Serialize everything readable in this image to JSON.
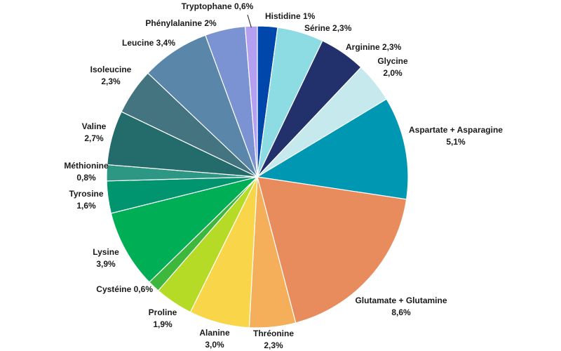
{
  "chart_data": {
    "type": "pie",
    "title": "",
    "slices": [
      {
        "name": "Histidine",
        "value": 1.0,
        "label_lines": [
          "Histidine 1%"
        ],
        "color": "#0047AB"
      },
      {
        "name": "Sérine",
        "value": 2.3,
        "label_lines": [
          "Sérine 2,3%"
        ],
        "color": "#8DDCE3"
      },
      {
        "name": "Arginine",
        "value": 2.3,
        "label_lines": [
          "Arginine 2,3%"
        ],
        "color": "#22306B"
      },
      {
        "name": "Glycine",
        "value": 2.0,
        "label_lines": [
          "Glycine",
          "2,0%"
        ],
        "color": "#C5E9ED"
      },
      {
        "name": "Aspartate + Asparagine",
        "value": 5.1,
        "label_lines": [
          "Aspartate + Asparagine",
          "5,1%"
        ],
        "color": "#0097B2"
      },
      {
        "name": "Glutamate + Glutamine",
        "value": 8.6,
        "label_lines": [
          "Glutamate + Glutamine",
          "8,6%"
        ],
        "color": "#E88B5D"
      },
      {
        "name": "Thréonine",
        "value": 2.3,
        "label_lines": [
          "Thréonine",
          "2,3%"
        ],
        "color": "#F5AE5A"
      },
      {
        "name": "Alanine",
        "value": 3.0,
        "label_lines": [
          "Alanine",
          "3,0%"
        ],
        "color": "#F9D649"
      },
      {
        "name": "Proline",
        "value": 1.9,
        "label_lines": [
          "Proline",
          "1,9%"
        ],
        "color": "#B5DB26"
      },
      {
        "name": "Cystéine",
        "value": 0.6,
        "label_lines": [
          "Cystéine 0,6%"
        ],
        "color": "#3DB83D"
      },
      {
        "name": "Lysine",
        "value": 3.9,
        "label_lines": [
          "Lysine",
          "3,9%"
        ],
        "color": "#00AE55"
      },
      {
        "name": "Tyrosine",
        "value": 1.6,
        "label_lines": [
          "Tyrosine",
          "1,6%"
        ],
        "color": "#00956E"
      },
      {
        "name": "Méthionine",
        "value": 0.8,
        "label_lines": [
          "Méthionine",
          "0,8%"
        ],
        "color": "#2E9783"
      },
      {
        "name": "Valine",
        "value": 2.7,
        "label_lines": [
          "Valine",
          "2,7%"
        ],
        "color": "#246B6B"
      },
      {
        "name": "Isoleucine",
        "value": 2.3,
        "label_lines": [
          "Isoleucine",
          "2,3%"
        ],
        "color": "#43747F"
      },
      {
        "name": "Leucine",
        "value": 3.4,
        "label_lines": [
          "Leucine 3,4%"
        ],
        "color": "#5A86AA"
      },
      {
        "name": "Phénylalanine",
        "value": 2.0,
        "label_lines": [
          "Phénylalanine 2%"
        ],
        "color": "#7B93D2"
      },
      {
        "name": "Tryptophane",
        "value": 0.6,
        "label_lines": [
          "Tryptophane 0,6%"
        ],
        "color": "#B49FF0"
      }
    ]
  }
}
